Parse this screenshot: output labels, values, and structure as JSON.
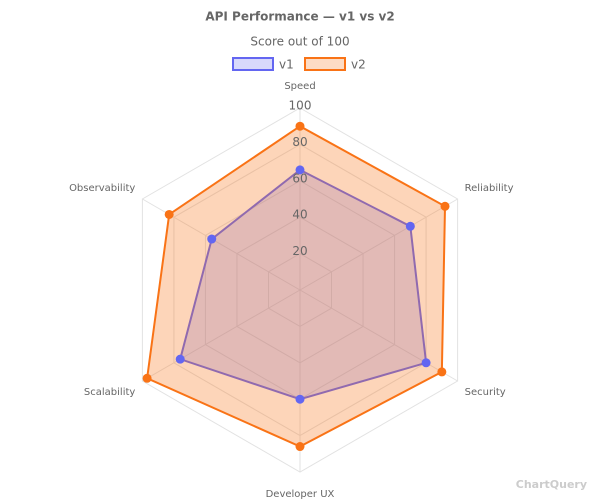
{
  "chart_data": {
    "type": "radar",
    "title": "API Performance — v1 vs v2",
    "subtitle": "Score out of 100",
    "categories": [
      "Speed",
      "Reliability",
      "Security",
      "Developer UX",
      "Scalability",
      "Observability"
    ],
    "series": [
      {
        "name": "v1",
        "color": "#6366f1",
        "values": [
          66,
          70,
          80,
          60,
          76,
          56
        ]
      },
      {
        "name": "v2",
        "color": "#f97316",
        "values": [
          90,
          92,
          90,
          86,
          97,
          83
        ]
      }
    ],
    "rlim": [
      0,
      100
    ],
    "rticks": [
      20,
      40,
      60,
      80,
      100
    ],
    "grid": true,
    "legend": "top",
    "watermark": "ChartQuery"
  }
}
